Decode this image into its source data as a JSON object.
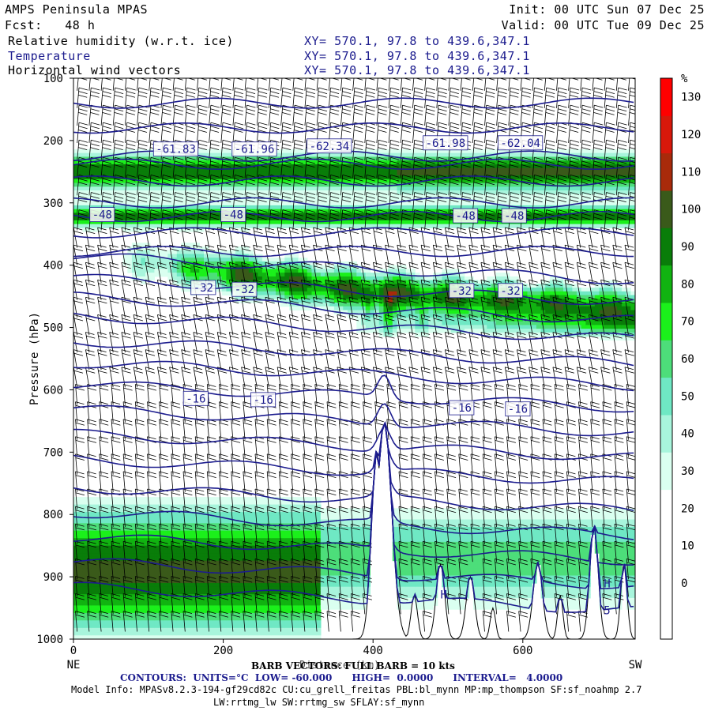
{
  "header": {
    "model": "AMPS Peninsula MPAS",
    "init": "Init: 00 UTC Sun 07 Dec 25",
    "fcst_label": "Fcst:",
    "fcst_value": "48 h",
    "valid": "Valid: 00 UTC Tue 09 Dec 25",
    "field_rh": "Relative humidity (w.r.t. ice)",
    "field_temp": "Temperature",
    "field_wind": "Horizontal wind vectors",
    "xy": "XY= 570.1, 97.8 to 439.6,347.1"
  },
  "colors": {
    "temp_contour": "#1c1c8e",
    "rh_scale": [
      "#ffffff",
      "#ffffff",
      "#ffffff",
      "#ffffff",
      "#dafff0",
      "#a8f5dc",
      "#6fe8c4",
      "#4dde7a",
      "#1bf01b",
      "#11b311",
      "#097d09",
      "#3a5a1a",
      "#a82a0a",
      "#d8180a",
      "#ff0000"
    ]
  },
  "chart_data": {
    "type": "heatmap",
    "title": "Relative humidity (w.r.t. ice)",
    "xlabel": "Distance (km)",
    "ylabel": "Pressure (hPa)",
    "x_left_label": "NE",
    "x_right_label": "SW",
    "xlim": [
      0,
      750
    ],
    "ylim": [
      1000,
      100
    ],
    "x_ticks": [
      "0",
      "200",
      "400",
      "600"
    ],
    "y_ticks": [
      "100",
      "200",
      "300",
      "400",
      "500",
      "600",
      "700",
      "800",
      "900",
      "1000"
    ],
    "colorbar": {
      "unit": "%",
      "ticks": [
        "130",
        "120",
        "110",
        "100",
        "90",
        "80",
        "70",
        "60",
        "50",
        "40",
        "30",
        "20",
        "10",
        "0"
      ],
      "levels": [
        -10,
        0,
        10,
        20,
        30,
        40,
        50,
        60,
        70,
        80,
        90,
        100,
        110,
        120,
        130,
        140
      ]
    },
    "temperature_labels": [
      {
        "text": "-61.83",
        "x": 110,
        "p": 215
      },
      {
        "text": "-61.96",
        "x": 215,
        "p": 215
      },
      {
        "text": "-62.34",
        "x": 315,
        "p": 210
      },
      {
        "text": "-61.98",
        "x": 470,
        "p": 205
      },
      {
        "text": "-62.04",
        "x": 570,
        "p": 205
      },
      {
        "text": "-48",
        "x": 25,
        "p": 320
      },
      {
        "text": "-48",
        "x": 200,
        "p": 320
      },
      {
        "text": "-48",
        "x": 510,
        "p": 322
      },
      {
        "text": "-48",
        "x": 575,
        "p": 322
      },
      {
        "text": "-32",
        "x": 160,
        "p": 437
      },
      {
        "text": "-32",
        "x": 215,
        "p": 440
      },
      {
        "text": "-32",
        "x": 505,
        "p": 442
      },
      {
        "text": "-32",
        "x": 570,
        "p": 442
      },
      {
        "text": "-16",
        "x": 150,
        "p": 615
      },
      {
        "text": "-16",
        "x": 240,
        "p": 617
      },
      {
        "text": "-16",
        "x": 505,
        "p": 630
      },
      {
        "text": "-16",
        "x": 580,
        "p": 632
      }
    ],
    "marks": [
      {
        "text": "H",
        "x": 490,
        "p": 935
      },
      {
        "text": "H",
        "x": 708,
        "p": 917
      },
      {
        "text": "5",
        "x": 708,
        "p": 960
      }
    ]
  },
  "footer": {
    "barb": "BARB VECTORS: FULL BARB = 10 kts",
    "contours_prefix": "CONTOURS:",
    "contours": "UNITS=°C  LOW= -60.000      HIGH=  0.0000      INTERVAL=   4.0000",
    "model_info": "Model Info: MPASv8.2.3-194-gf29cd82c CU:cu_grell_freitas PBL:bl_mynn MP:mp_thompson SF:sf_noahmp 2.7",
    "model_info2": "LW:rrtmg_lw SW:rrtmg_sw SFLAY:sf_mynn"
  }
}
